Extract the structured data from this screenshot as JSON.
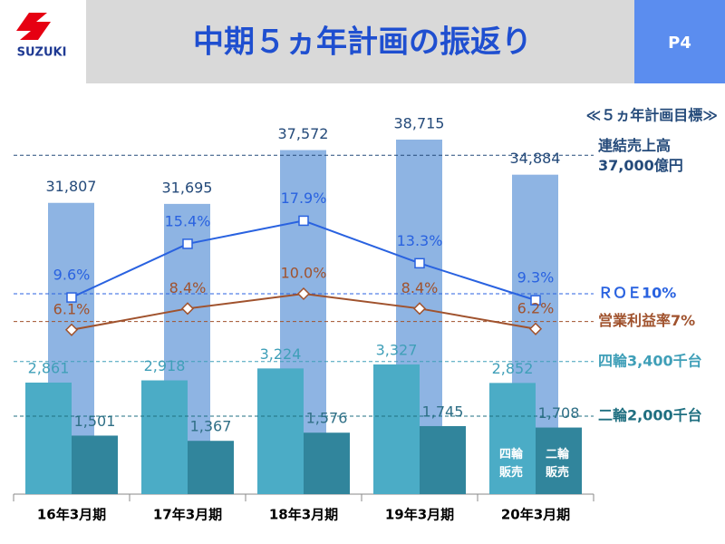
{
  "logo": "SUZUKI",
  "title": "中期５ヵ年計画の振返り",
  "page": "P4",
  "chart_data": {
    "type": "bar",
    "targets_title": "≪５ヵ年計画目標≫",
    "categories": [
      "16年3月期",
      "17年3月期",
      "18年3月期",
      "19年3月期",
      "20年3月期"
    ],
    "series": [
      {
        "type": "bar",
        "color": "#8eb4e3",
        "label_color": "#244a7a",
        "values": [
          31807,
          31695,
          37572,
          38715,
          34884
        ],
        "value_labels": [
          "31,807",
          "31,695",
          "37,572",
          "38,715",
          "34,884"
        ],
        "target": {
          "value": 37000,
          "label": [
            "連結売上高",
            "37,000億円"
          ],
          "color": "#244a7a"
        }
      },
      {
        "type": "bar",
        "name": "四輪販売",
        "color": "#4bacc6",
        "label_color": "#3f9fb8",
        "values": [
          2861,
          2918,
          3224,
          3327,
          2852
        ],
        "value_labels": [
          "2,861",
          "2,918",
          "3,224",
          "3,327",
          "2,852"
        ],
        "target": {
          "value": 3400,
          "label": [
            "四輪3,400千台"
          ],
          "color": "#3f9fb8"
        }
      },
      {
        "type": "bar",
        "name": "二輪販売",
        "color": "#31859c",
        "label_color": "#2f6f86",
        "values": [
          1501,
          1367,
          1576,
          1745,
          1708
        ],
        "value_labels": [
          "1,501",
          "1,367",
          "1,576",
          "1,745",
          "1,708"
        ],
        "target": {
          "value": 2000,
          "label": [
            "二輪2,000千台"
          ],
          "color": "#1f6f80"
        }
      },
      {
        "type": "line",
        "color": "#2962e0",
        "marker": "square",
        "values": [
          9.6,
          15.4,
          17.9,
          13.3,
          9.3
        ],
        "value_labels": [
          "9.6%",
          "15.4%",
          "17.9%",
          "13.3%",
          "9.3%"
        ],
        "target": {
          "value": 10,
          "label": [
            "ＲＯＥ10%"
          ],
          "color": "#2962e0"
        }
      },
      {
        "type": "line",
        "color": "#a0522d",
        "marker": "diamond",
        "values": [
          6.1,
          8.4,
          10.0,
          8.4,
          6.2
        ],
        "value_labels": [
          "6.1%",
          "8.4%",
          "10.0%",
          "8.4%",
          "6.2%"
        ],
        "target": {
          "value": 7,
          "label": [
            "営業利益率7%"
          ],
          "color": "#a0522d"
        }
      }
    ]
  }
}
